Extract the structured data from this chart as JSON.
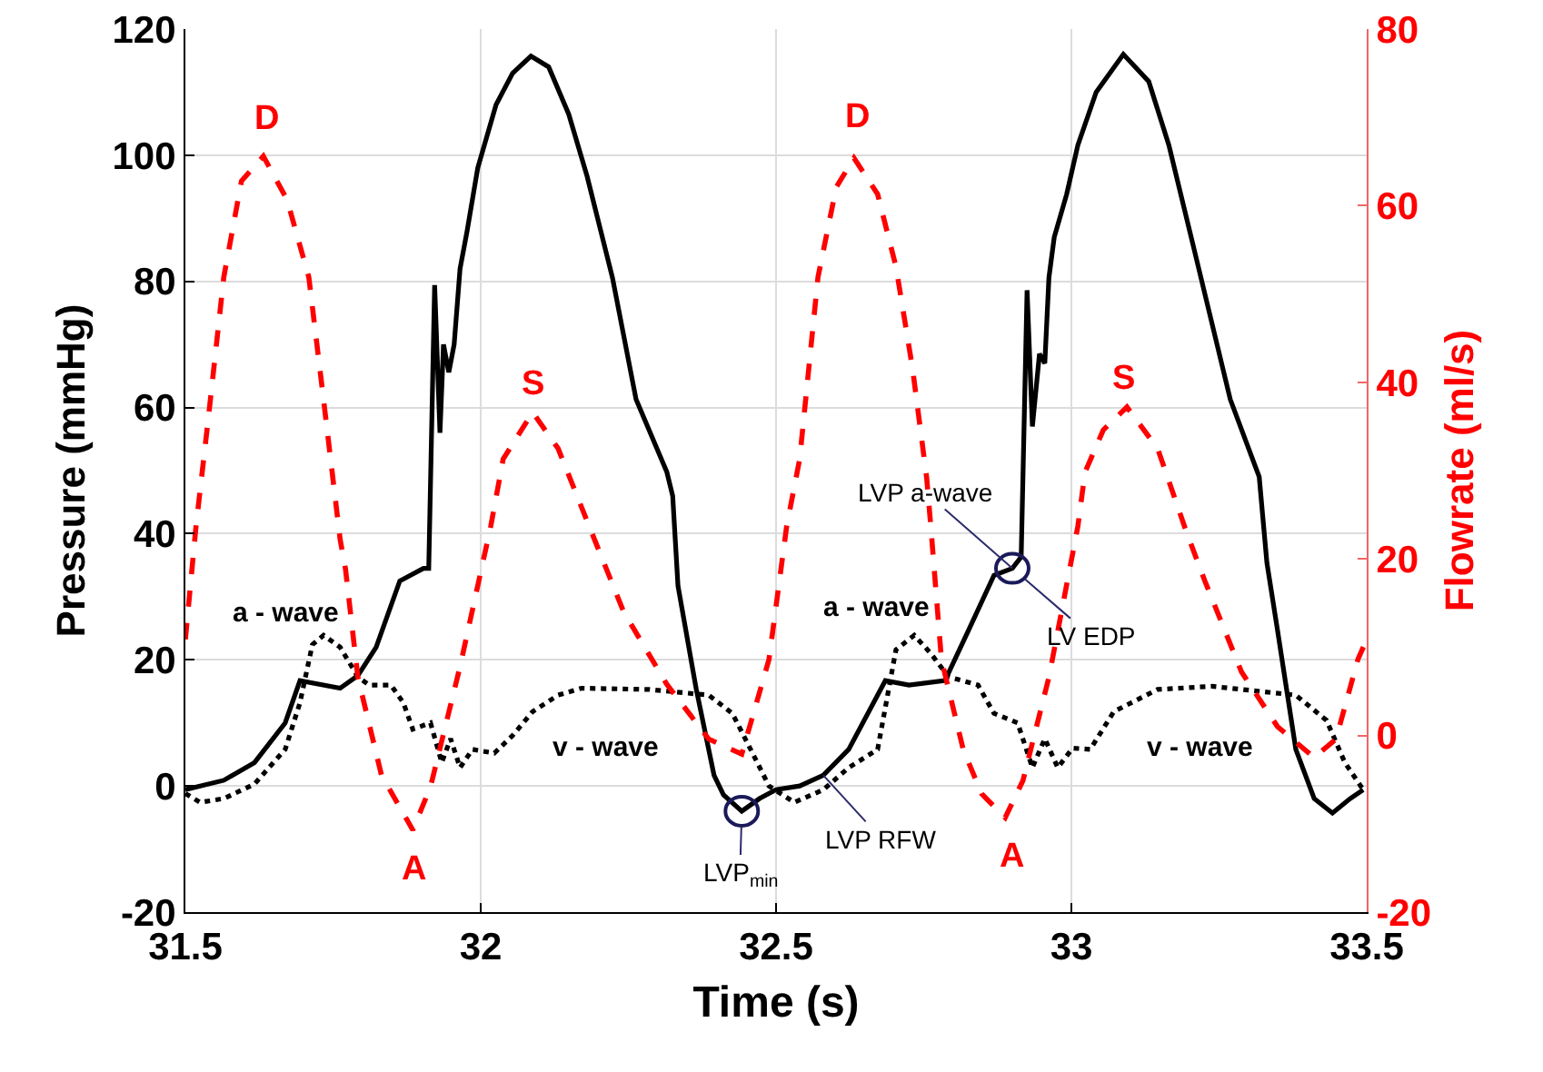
{
  "chart_data": {
    "type": "line",
    "xlabel": "Time (s)",
    "ylabel": "Pressure (mmHg)",
    "y2label": "Flowrate (ml/s)",
    "xlim": [
      31.5,
      33.5
    ],
    "xticks": [
      31.5,
      32,
      32.5,
      33,
      33.5
    ],
    "ylim": [
      -20,
      120
    ],
    "yticks": [
      -20,
      0,
      20,
      40,
      60,
      80,
      100,
      120
    ],
    "y2lim": [
      -20,
      80
    ],
    "y2ticks": [
      -20,
      0,
      20,
      40,
      60,
      80
    ],
    "grid": true,
    "series": [
      {
        "color": "#000000",
        "line_style": "solid",
        "x": [
          31.5,
          31.565,
          31.617,
          31.669,
          31.694,
          31.762,
          31.792,
          31.823,
          31.863,
          31.903,
          31.912,
          31.922,
          31.931,
          31.937,
          31.946,
          31.955,
          31.965,
          31.977,
          31.995,
          32.026,
          32.054,
          32.085,
          32.115,
          32.149,
          32.18,
          32.223,
          32.263,
          32.315,
          32.325,
          32.334,
          32.365,
          32.395,
          32.411,
          32.442,
          32.472,
          32.5,
          32.54,
          32.58,
          32.623,
          32.685,
          32.725,
          32.786,
          32.826,
          32.869,
          32.9,
          32.915,
          32.925,
          32.934,
          32.946,
          32.955,
          32.962,
          32.971,
          32.992,
          33.011,
          33.042,
          33.088,
          33.131,
          33.165,
          33.208,
          33.269,
          33.318,
          33.331,
          33.349,
          33.38,
          33.411,
          33.442,
          33.472,
          33.494
        ],
        "values": [
          -0.6,
          0.9,
          3.7,
          10,
          16.7,
          15.5,
          17.5,
          22,
          32.5,
          34.5,
          34.5,
          79.4,
          56,
          70,
          65.6,
          70,
          82,
          88,
          98,
          108,
          113,
          115.7,
          114,
          106.5,
          96.7,
          80.6,
          61.3,
          49.8,
          46,
          31.7,
          15.3,
          1.7,
          -1.4,
          -4,
          -2,
          -0.6,
          0,
          1.7,
          5.8,
          16.7,
          16,
          16.7,
          24.7,
          33.4,
          34.5,
          36.3,
          78.6,
          57,
          68.5,
          67,
          80.6,
          87,
          93.8,
          101.6,
          110,
          116,
          111.7,
          101.6,
          85,
          61.3,
          49,
          35.4,
          24.7,
          5.8,
          -2,
          -4.3,
          -2,
          -0.6
        ]
      },
      {
        "color": "#000000",
        "line_style": "dotted",
        "x": [
          31.5,
          31.525,
          31.565,
          31.617,
          31.669,
          31.694,
          31.715,
          31.734,
          31.762,
          31.792,
          31.811,
          31.848,
          31.869,
          31.885,
          31.915,
          31.934,
          31.949,
          31.965,
          31.986,
          32.023,
          32.054,
          32.088,
          32.131,
          32.171,
          32.285,
          32.386,
          32.426,
          32.457,
          32.488,
          32.531,
          32.58,
          32.623,
          32.672,
          32.703,
          32.734,
          32.762,
          32.792,
          32.842,
          32.869,
          32.909,
          32.934,
          32.955,
          32.977,
          33.002,
          33.032,
          33.072,
          33.146,
          33.238,
          33.38,
          33.432,
          33.463,
          33.494
        ],
        "values": [
          -1.2,
          -2.6,
          -2,
          0.3,
          5.8,
          13.2,
          22.4,
          23.9,
          22,
          17.3,
          16,
          16,
          13.2,
          9,
          10,
          3.7,
          7.5,
          2.9,
          5.8,
          5.2,
          8,
          11.8,
          14.4,
          15.5,
          15.3,
          14.4,
          11.5,
          5.8,
          0,
          -2.6,
          -0.6,
          2.9,
          5.8,
          21.6,
          23.9,
          21,
          17.3,
          16,
          11.5,
          10,
          2.9,
          7.5,
          2.9,
          6,
          5.8,
          11.8,
          15.3,
          15.8,
          14.4,
          10.4,
          3.7,
          -0.6
        ]
      },
      {
        "axis": "y2",
        "color": "#ff0000",
        "line_style": "dashed",
        "x": [
          31.5,
          31.518,
          31.54,
          31.565,
          31.595,
          31.632,
          31.672,
          31.709,
          31.734,
          31.762,
          31.771,
          31.792,
          31.832,
          31.885,
          31.915,
          31.965,
          32.017,
          32.038,
          32.088,
          32.131,
          32.18,
          32.242,
          32.315,
          32.386,
          32.442,
          32.488,
          32.518,
          32.54,
          32.571,
          32.602,
          32.632,
          32.672,
          32.703,
          32.731,
          32.755,
          32.762,
          32.78,
          32.817,
          32.848,
          32.888,
          32.918,
          32.962,
          33.011,
          33.023,
          33.054,
          33.094,
          33.146,
          33.195,
          33.226,
          33.288,
          33.349,
          33.411,
          33.448,
          33.485,
          33.5
        ],
        "values": [
          10.9,
          23.7,
          36.6,
          51.9,
          62.8,
          65.6,
          60.7,
          51.9,
          38,
          22.2,
          18.9,
          6.6,
          -4.5,
          -10.7,
          -5.8,
          7.8,
          23.7,
          31.3,
          36.6,
          32.5,
          24.3,
          14,
          5.8,
          -0.4,
          -2.1,
          8.6,
          23.7,
          31.3,
          51.9,
          62.1,
          65.4,
          61.3,
          53.1,
          41.6,
          29.2,
          23.7,
          8.6,
          -1.6,
          -6.6,
          -9.3,
          -5.1,
          6.6,
          23.7,
          29.8,
          34.6,
          37.2,
          32.5,
          23,
          17.5,
          7.2,
          1,
          -2.5,
          -0.4,
          8.6,
          10.9
        ]
      }
    ],
    "annotations": [
      {
        "text": "D",
        "x": 31.632,
        "y": 99.8
      },
      {
        "text": "D",
        "x": 32.632,
        "y": 99.6
      },
      {
        "text": "S",
        "x": 32.088,
        "y": 59.2
      },
      {
        "text": "S",
        "x": 33.094,
        "y": 60.1
      },
      {
        "text": "A",
        "x": 31.885,
        "y": -7
      },
      {
        "text": "A",
        "x": 32.888,
        "y": -5
      },
      {
        "text": "a - wave",
        "x": 31.734,
        "y": 23.9
      },
      {
        "text": "a - wave",
        "x": 32.734,
        "y": 23.9
      },
      {
        "text": "v - wave",
        "x": 32.171,
        "y": 15.5
      },
      {
        "text": "v - wave",
        "x": 33.238,
        "y": 15.8
      },
      {
        "text": "LVP a-wave",
        "x": 32.9,
        "y": 34.5
      },
      {
        "text": "LV EDP",
        "x": 32.9,
        "y": 34.5
      },
      {
        "text": "LVP$_{min}$",
        "x": 32.442,
        "y": -4
      },
      {
        "text": "LVP RFW",
        "x": 32.58,
        "y": 1.7
      }
    ]
  }
}
